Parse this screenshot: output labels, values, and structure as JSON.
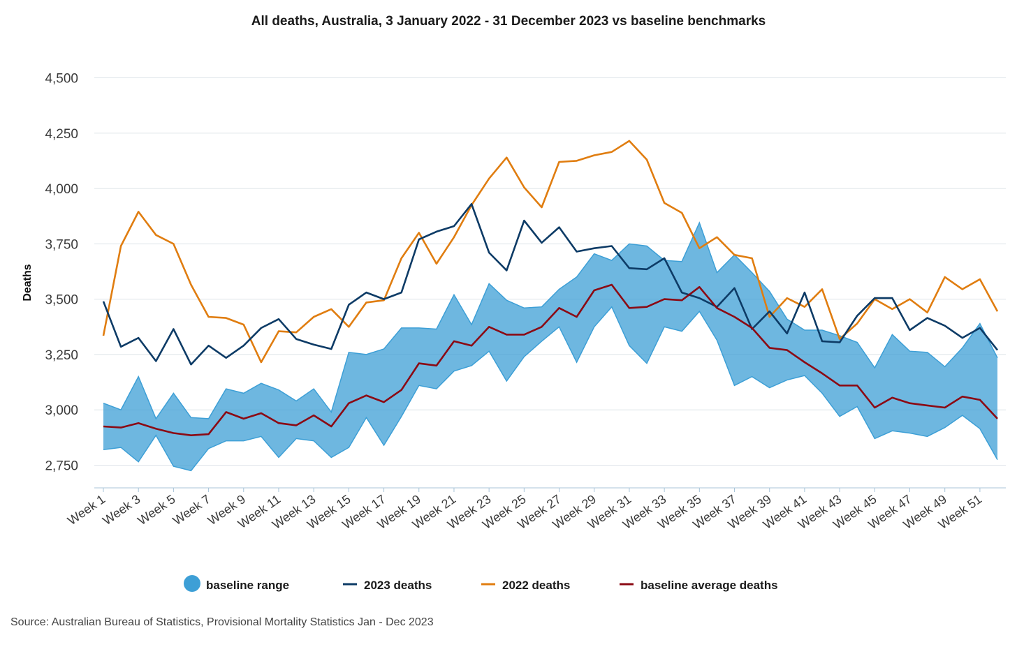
{
  "chart_data": {
    "type": "line",
    "title": "All deaths, Australia, 3 January 2022 - 31 December 2023 vs baseline benchmarks",
    "ylabel": "Deaths",
    "xlabel": "",
    "ylim": [
      2680,
      4500
    ],
    "yticks": [
      2750,
      3000,
      3250,
      3500,
      3750,
      4000,
      4250,
      4500
    ],
    "ytick_labels": [
      "2,750",
      "3,000",
      "3,250",
      "3,500",
      "3,750",
      "4,000",
      "4,250",
      "4,500"
    ],
    "x": [
      "Week 1",
      "Week 2",
      "Week 3",
      "Week 4",
      "Week 5",
      "Week 6",
      "Week 7",
      "Week 8",
      "Week 9",
      "Week 10",
      "Week 11",
      "Week 12",
      "Week 13",
      "Week 14",
      "Week 15",
      "Week 16",
      "Week 17",
      "Week 18",
      "Week 19",
      "Week 20",
      "Week 21",
      "Week 22",
      "Week 23",
      "Week 24",
      "Week 25",
      "Week 26",
      "Week 27",
      "Week 28",
      "Week 29",
      "Week 30",
      "Week 31",
      "Week 32",
      "Week 33",
      "Week 34",
      "Week 35",
      "Week 36",
      "Week 37",
      "Week 38",
      "Week 39",
      "Week 40",
      "Week 41",
      "Week 42",
      "Week 43",
      "Week 44",
      "Week 45",
      "Week 46",
      "Week 47",
      "Week 48",
      "Week 49",
      "Week 50",
      "Week 51",
      "Week 52"
    ],
    "xtick_labels": [
      "Week 1",
      "Week 3",
      "Week 5",
      "Week 7",
      "Week 9",
      "Week 11",
      "Week 13",
      "Week 15",
      "Week 17",
      "Week 19",
      "Week 21",
      "Week 23",
      "Week 25",
      "Week 27",
      "Week 29",
      "Week 31",
      "Week 33",
      "Week 35",
      "Week 37",
      "Week 39",
      "Week 41",
      "Week 43",
      "Week 45",
      "Week 47",
      "Week 49",
      "Week 51"
    ],
    "range": {
      "name": "baseline range",
      "color": "#3d9fd6",
      "low": [
        2820,
        2830,
        2765,
        2885,
        2745,
        2725,
        2825,
        2860,
        2860,
        2880,
        2785,
        2870,
        2860,
        2785,
        2830,
        2965,
        2840,
        2970,
        3110,
        3095,
        3175,
        3200,
        3265,
        3130,
        3240,
        3310,
        3375,
        3215,
        3375,
        3465,
        3290,
        3210,
        3375,
        3355,
        3445,
        3315,
        3110,
        3150,
        3100,
        3135,
        3155,
        3075,
        2970,
        3015,
        2870,
        2905,
        2895,
        2880,
        2920,
        2975,
        2915,
        2775
      ],
      "high": [
        3030,
        3000,
        3150,
        2960,
        3075,
        2965,
        2960,
        3095,
        3075,
        3120,
        3090,
        3040,
        3095,
        2990,
        3260,
        3250,
        3275,
        3370,
        3370,
        3365,
        3520,
        3385,
        3570,
        3495,
        3460,
        3465,
        3545,
        3600,
        3705,
        3675,
        3750,
        3740,
        3675,
        3670,
        3845,
        3620,
        3700,
        3620,
        3535,
        3410,
        3360,
        3360,
        3335,
        3305,
        3190,
        3340,
        3265,
        3260,
        3195,
        3280,
        3390,
        3235
      ]
    },
    "series": [
      {
        "name": "2023 deaths",
        "color": "#0d3b66",
        "values": [
          3490,
          3285,
          3325,
          3220,
          3365,
          3205,
          3290,
          3235,
          3290,
          3370,
          3410,
          3320,
          3295,
          3275,
          3475,
          3530,
          3500,
          3530,
          3770,
          3805,
          3830,
          3930,
          3710,
          3630,
          3855,
          3755,
          3825,
          3715,
          3730,
          3740,
          3640,
          3635,
          3685,
          3530,
          3505,
          3465,
          3550,
          3365,
          3445,
          3345,
          3530,
          3310,
          3305,
          3425,
          3505,
          3505,
          3360,
          3415,
          3380,
          3325,
          3370,
          3270
        ]
      },
      {
        "name": "2022 deaths",
        "color": "#e07d10",
        "values": [
          3335,
          3740,
          3895,
          3790,
          3750,
          3565,
          3420,
          3415,
          3385,
          3215,
          3355,
          3350,
          3420,
          3455,
          3375,
          3485,
          3495,
          3685,
          3800,
          3660,
          3780,
          3925,
          4045,
          4140,
          4005,
          3915,
          4120,
          4125,
          4150,
          4165,
          4215,
          4130,
          3935,
          3890,
          3730,
          3780,
          3700,
          3685,
          3420,
          3505,
          3465,
          3545,
          3320,
          3390,
          3500,
          3455,
          3500,
          3440,
          3600,
          3545,
          3590,
          3445
        ]
      },
      {
        "name": "baseline average deaths",
        "color": "#8b0a14",
        "values": [
          2925,
          2920,
          2940,
          2915,
          2895,
          2885,
          2890,
          2990,
          2960,
          2985,
          2940,
          2930,
          2975,
          2925,
          3030,
          3065,
          3035,
          3090,
          3210,
          3200,
          3310,
          3290,
          3375,
          3340,
          3340,
          3375,
          3460,
          3420,
          3540,
          3565,
          3460,
          3465,
          3500,
          3495,
          3555,
          3460,
          3420,
          3370,
          3280,
          3270,
          3215,
          3165,
          3110,
          3110,
          3010,
          3055,
          3030,
          3020,
          3010,
          3060,
          3045,
          2960
        ]
      }
    ],
    "legend": [
      {
        "label": "baseline range",
        "color": "#3d9fd6",
        "kind": "dot"
      },
      {
        "label": "2023 deaths",
        "color": "#0d3b66",
        "kind": "line"
      },
      {
        "label": "2022 deaths",
        "color": "#e07d10",
        "kind": "line"
      },
      {
        "label": "baseline average deaths",
        "color": "#8b0a14",
        "kind": "line"
      }
    ],
    "legend_position": "bottom",
    "grid": true,
    "source": "Source: Australian Bureau of Statistics, Provisional Mortality Statistics Jan - Dec 2023"
  }
}
